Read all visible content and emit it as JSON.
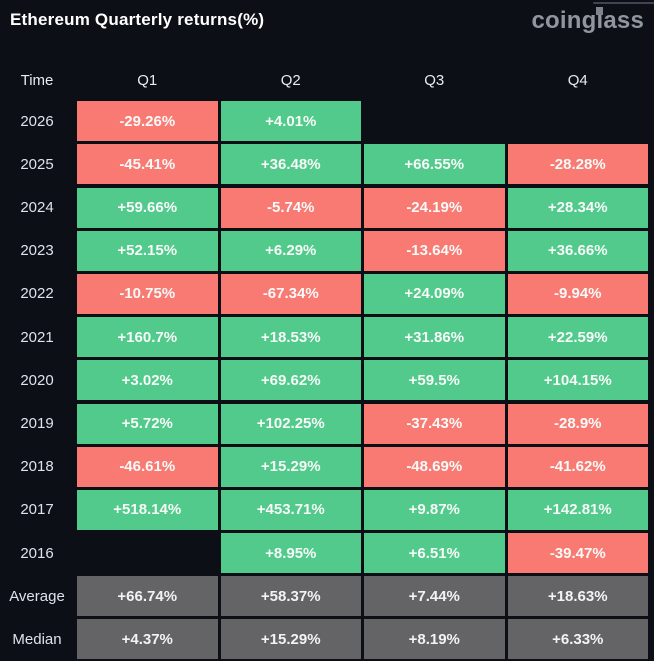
{
  "header": {
    "title": "Ethereum Quarterly returns(%)",
    "logo": "coinglass"
  },
  "colors": {
    "positive": "#52ca8c",
    "negative": "#f97a73",
    "summary": "#646467",
    "background": "#0c0f15"
  },
  "table": {
    "columns": [
      "Time",
      "Q1",
      "Q2",
      "Q3",
      "Q4"
    ],
    "rows": [
      {
        "label": "2026",
        "cells": [
          {
            "text": "-29.26%",
            "type": "negative"
          },
          {
            "text": "+4.01%",
            "type": "positive"
          },
          {
            "text": "",
            "type": "empty"
          },
          {
            "text": "",
            "type": "empty"
          }
        ]
      },
      {
        "label": "2025",
        "cells": [
          {
            "text": "-45.41%",
            "type": "negative"
          },
          {
            "text": "+36.48%",
            "type": "positive"
          },
          {
            "text": "+66.55%",
            "type": "positive"
          },
          {
            "text": "-28.28%",
            "type": "negative"
          }
        ]
      },
      {
        "label": "2024",
        "cells": [
          {
            "text": "+59.66%",
            "type": "positive"
          },
          {
            "text": "-5.74%",
            "type": "negative"
          },
          {
            "text": "-24.19%",
            "type": "negative"
          },
          {
            "text": "+28.34%",
            "type": "positive"
          }
        ]
      },
      {
        "label": "2023",
        "cells": [
          {
            "text": "+52.15%",
            "type": "positive"
          },
          {
            "text": "+6.29%",
            "type": "positive"
          },
          {
            "text": "-13.64%",
            "type": "negative"
          },
          {
            "text": "+36.66%",
            "type": "positive"
          }
        ]
      },
      {
        "label": "2022",
        "cells": [
          {
            "text": "-10.75%",
            "type": "negative"
          },
          {
            "text": "-67.34%",
            "type": "negative"
          },
          {
            "text": "+24.09%",
            "type": "positive"
          },
          {
            "text": "-9.94%",
            "type": "negative"
          }
        ]
      },
      {
        "label": "2021",
        "cells": [
          {
            "text": "+160.7%",
            "type": "positive"
          },
          {
            "text": "+18.53%",
            "type": "positive"
          },
          {
            "text": "+31.86%",
            "type": "positive"
          },
          {
            "text": "+22.59%",
            "type": "positive"
          }
        ]
      },
      {
        "label": "2020",
        "cells": [
          {
            "text": "+3.02%",
            "type": "positive"
          },
          {
            "text": "+69.62%",
            "type": "positive"
          },
          {
            "text": "+59.5%",
            "type": "positive"
          },
          {
            "text": "+104.15%",
            "type": "positive"
          }
        ]
      },
      {
        "label": "2019",
        "cells": [
          {
            "text": "+5.72%",
            "type": "positive"
          },
          {
            "text": "+102.25%",
            "type": "positive"
          },
          {
            "text": "-37.43%",
            "type": "negative"
          },
          {
            "text": "-28.9%",
            "type": "negative"
          }
        ]
      },
      {
        "label": "2018",
        "cells": [
          {
            "text": "-46.61%",
            "type": "negative"
          },
          {
            "text": "+15.29%",
            "type": "positive"
          },
          {
            "text": "-48.69%",
            "type": "negative"
          },
          {
            "text": "-41.62%",
            "type": "negative"
          }
        ]
      },
      {
        "label": "2017",
        "cells": [
          {
            "text": "+518.14%",
            "type": "positive"
          },
          {
            "text": "+453.71%",
            "type": "positive"
          },
          {
            "text": "+9.87%",
            "type": "positive"
          },
          {
            "text": "+142.81%",
            "type": "positive"
          }
        ]
      },
      {
        "label": "2016",
        "cells": [
          {
            "text": "",
            "type": "empty"
          },
          {
            "text": "+8.95%",
            "type": "positive"
          },
          {
            "text": "+6.51%",
            "type": "positive"
          },
          {
            "text": "-39.47%",
            "type": "negative"
          }
        ]
      },
      {
        "label": "Average",
        "cells": [
          {
            "text": "+66.74%",
            "type": "summary"
          },
          {
            "text": "+58.37%",
            "type": "summary"
          },
          {
            "text": "+7.44%",
            "type": "summary"
          },
          {
            "text": "+18.63%",
            "type": "summary"
          }
        ]
      },
      {
        "label": "Median",
        "cells": [
          {
            "text": "+4.37%",
            "type": "summary"
          },
          {
            "text": "+15.29%",
            "type": "summary"
          },
          {
            "text": "+8.19%",
            "type": "summary"
          },
          {
            "text": "+6.33%",
            "type": "summary"
          }
        ]
      }
    ]
  },
  "chart_data": {
    "type": "heatmap",
    "title": "Ethereum Quarterly returns(%)",
    "columns": [
      "Q1",
      "Q2",
      "Q3",
      "Q4"
    ],
    "rows": [
      "2026",
      "2025",
      "2024",
      "2023",
      "2022",
      "2021",
      "2020",
      "2019",
      "2018",
      "2017",
      "2016",
      "Average",
      "Median"
    ],
    "values": [
      [
        -29.26,
        4.01,
        null,
        null
      ],
      [
        -45.41,
        36.48,
        66.55,
        -28.28
      ],
      [
        59.66,
        -5.74,
        -24.19,
        28.34
      ],
      [
        52.15,
        6.29,
        -13.64,
        36.66
      ],
      [
        -10.75,
        -67.34,
        24.09,
        -9.94
      ],
      [
        160.7,
        18.53,
        31.86,
        22.59
      ],
      [
        3.02,
        69.62,
        59.5,
        104.15
      ],
      [
        5.72,
        102.25,
        -37.43,
        -28.9
      ],
      [
        -46.61,
        15.29,
        -48.69,
        -41.62
      ],
      [
        518.14,
        453.71,
        9.87,
        142.81
      ],
      [
        null,
        8.95,
        6.51,
        -39.47
      ],
      [
        66.74,
        58.37,
        7.44,
        18.63
      ],
      [
        4.37,
        15.29,
        8.19,
        6.33
      ]
    ],
    "color_coding": "green=positive, red=negative, grey=summary rows",
    "legend_position": "none",
    "grid": false
  }
}
